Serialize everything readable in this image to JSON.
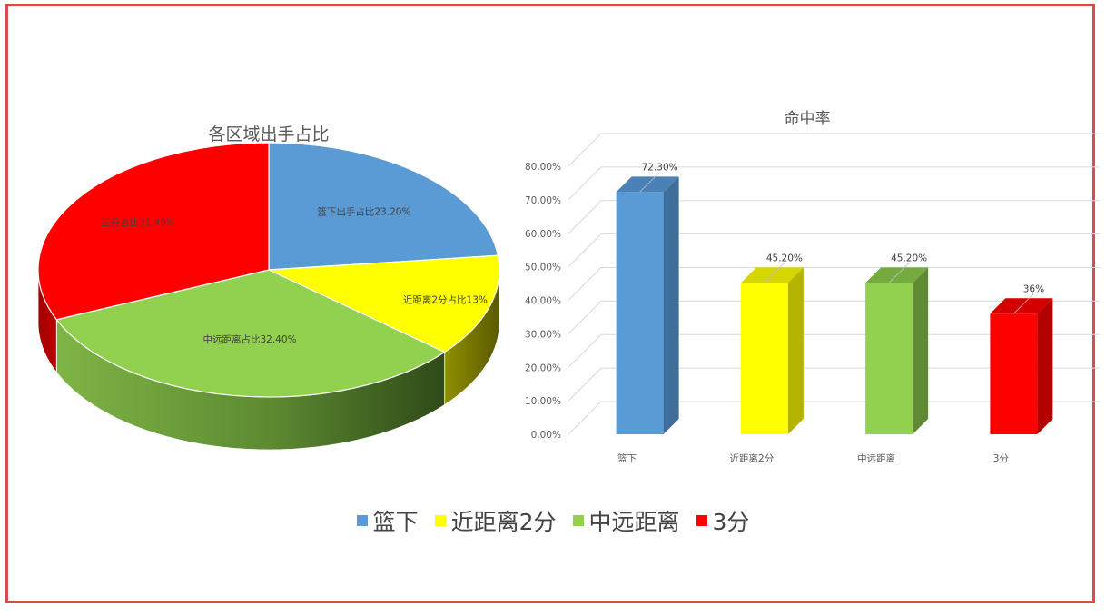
{
  "chart_data": [
    {
      "type": "pie",
      "title": "各区域出手占比",
      "series": [
        {
          "name": "篮下",
          "value": 23.2,
          "label": "篮下出手占比23.20%",
          "color": "#5b9bd5"
        },
        {
          "name": "近距离2分",
          "value": 13.0,
          "label": "近距离2分占比13%",
          "color": "#ffff00"
        },
        {
          "name": "中远距离",
          "value": 32.4,
          "label": "中远距离占比32.40%",
          "color": "#92d050"
        },
        {
          "name": "3分",
          "value": 31.4,
          "label": "三分占比31.40%",
          "color": "#ff0000"
        }
      ]
    },
    {
      "type": "bar",
      "title": "命中率",
      "categories": [
        "篮下",
        "近距离2分",
        "中远距离",
        "3分"
      ],
      "values": [
        72.3,
        45.2,
        45.2,
        36
      ],
      "data_labels": [
        "72.30%",
        "45.20%",
        "45.20%",
        "36%"
      ],
      "colors": [
        "#5b9bd5",
        "#ffff00",
        "#92d050",
        "#ff0000"
      ],
      "ylim": [
        0,
        80
      ],
      "yticks": [
        "0.00%",
        "10.00%",
        "20.00%",
        "30.00%",
        "40.00%",
        "50.00%",
        "60.00%",
        "70.00%",
        "80.00%"
      ],
      "grid": true
    }
  ],
  "legend": {
    "placement": "bottom",
    "items": [
      {
        "label": "篮下",
        "color": "#5b9bd5"
      },
      {
        "label": "近距离2分",
        "color": "#ffff00"
      },
      {
        "label": "中远距离",
        "color": "#92d050"
      },
      {
        "label": "3分",
        "color": "#ff0000"
      }
    ]
  }
}
